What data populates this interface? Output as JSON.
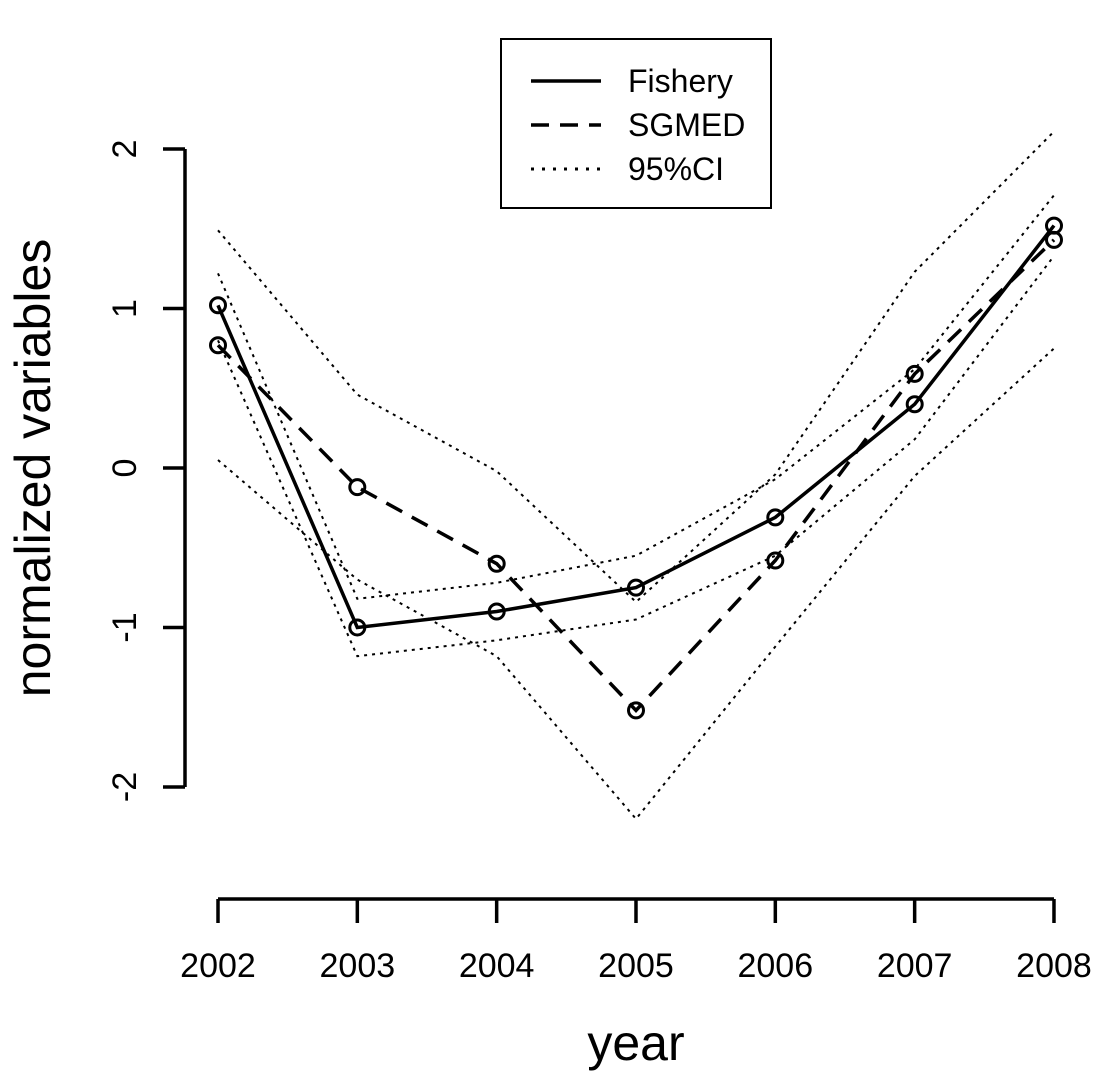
{
  "chart_data": {
    "type": "line",
    "title": "",
    "xlabel": "year",
    "ylabel": "normalized variables",
    "x": [
      2002,
      2003,
      2004,
      2005,
      2006,
      2007,
      2008
    ],
    "x_tick_labels": [
      "2002",
      "2003",
      "2004",
      "2005",
      "2006",
      "2007",
      "2008"
    ],
    "y_ticks": [
      -2,
      -1,
      0,
      1,
      2
    ],
    "y_tick_labels": [
      "-2",
      "-1",
      "0",
      "1",
      "2"
    ],
    "ylim": [
      -2,
      2
    ],
    "grid": false,
    "legend": {
      "position": "top-center",
      "entries": [
        "Fishery",
        "SGMED",
        "95%CI"
      ]
    },
    "series": [
      {
        "name": "Fishery",
        "line_style": "solid",
        "markers": "open-circle",
        "values": [
          1.02,
          -1.0,
          -0.9,
          -0.75,
          -0.31,
          0.4,
          1.52
        ]
      },
      {
        "name": "SGMED",
        "line_style": "dashed",
        "markers": "open-circle",
        "values": [
          0.77,
          -0.12,
          -0.6,
          -1.52,
          -0.58,
          0.59,
          1.43
        ]
      }
    ],
    "confidence_bands": [
      {
        "series": "Fishery",
        "label": "95%CI",
        "line_style": "dotted",
        "lower": [
          0.8,
          -1.18,
          -1.08,
          -0.95,
          -0.55,
          0.18,
          1.33
        ],
        "upper": [
          1.22,
          -0.82,
          -0.72,
          -0.55,
          -0.07,
          0.62,
          1.71
        ]
      },
      {
        "series": "SGMED",
        "label": "95%CI",
        "line_style": "dotted",
        "lower": [
          0.05,
          -0.7,
          -1.18,
          -2.2,
          -1.12,
          -0.05,
          0.75
        ],
        "upper": [
          1.49,
          0.46,
          -0.02,
          -0.84,
          -0.04,
          1.23,
          2.11
        ]
      }
    ],
    "colors": {
      "lines": "#000000",
      "background": "#ffffff"
    }
  }
}
